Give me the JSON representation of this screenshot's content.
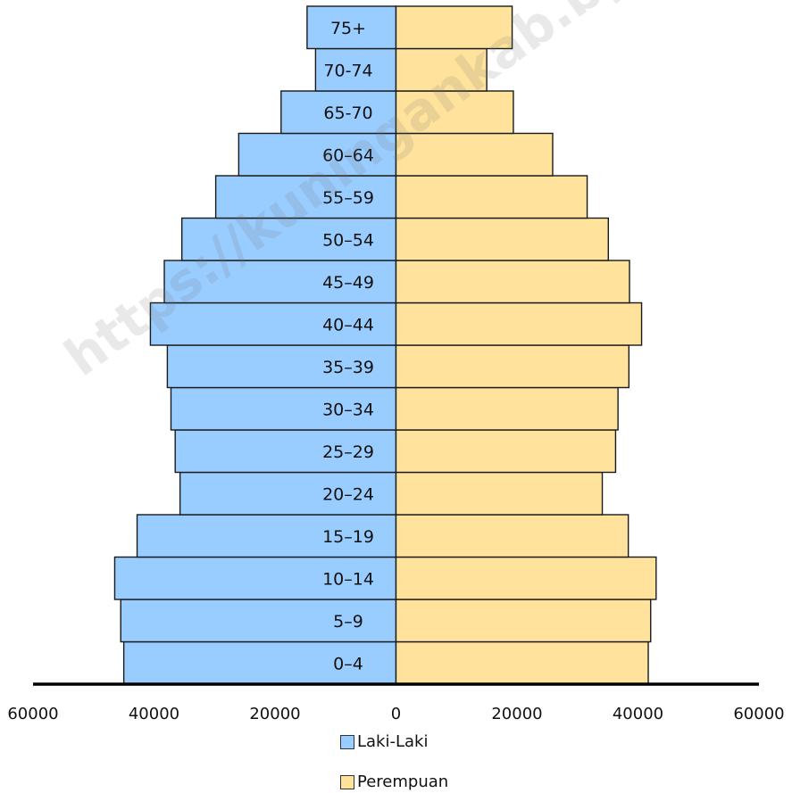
{
  "chart_data": {
    "type": "bar",
    "orientation": "horizontal",
    "layout": "population-pyramid",
    "categories": [
      "0–4",
      "5–9",
      "10–14",
      "15–19",
      "20–24",
      "25–29",
      "30–34",
      "35–39",
      "40–44",
      "45–49",
      "50–54",
      "55–59",
      "60–64",
      "65-70",
      "70-74",
      "75+"
    ],
    "series": [
      {
        "name": "Laki-Laki",
        "side": "left",
        "color": "#99ccff",
        "values": [
          45000,
          45500,
          46500,
          42800,
          35700,
          36500,
          37200,
          37800,
          40600,
          38300,
          35400,
          29800,
          26000,
          19000,
          13300,
          14700
        ]
      },
      {
        "name": "Perempuan",
        "side": "right",
        "color": "#ffe39c",
        "values": [
          41700,
          42100,
          43000,
          38400,
          34100,
          36300,
          36700,
          38500,
          40600,
          38600,
          35100,
          31600,
          25900,
          19400,
          15000,
          19200
        ]
      }
    ],
    "xlim": [
      -60000,
      60000
    ],
    "xticks": [
      "60000",
      "40000",
      "20000",
      "0",
      "20000",
      "40000",
      "60000"
    ],
    "xlabel": "",
    "ylabel": "",
    "title": "",
    "legend_position": "bottom-center",
    "grid": false
  },
  "legend": {
    "male_label": "Laki-Laki",
    "female_label": "Perempuan"
  },
  "watermark": "https://kuningankab.bps.go.id"
}
